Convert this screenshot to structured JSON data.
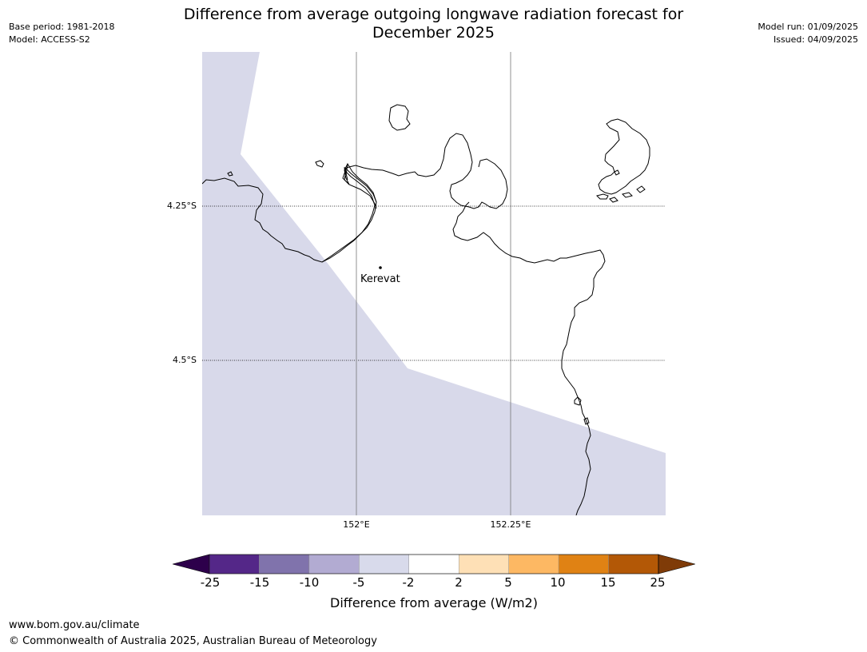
{
  "header": {
    "title_line1": "Difference from average outgoing longwave radiation forecast for",
    "title_line2": "December 2025",
    "base_period": "Base period: 1981-2018",
    "model": "Model: ACCESS-S2",
    "model_run": "Model run: 01/09/2025",
    "issued": "Issued: 04/09/2025"
  },
  "map": {
    "place_label": "Kerevat",
    "lat_labels": [
      "4.25°S",
      "4.5°S"
    ],
    "lon_labels": [
      "152°E",
      "152.25°E"
    ],
    "fill_color": "#d8d9ea",
    "fill_bin": "-5 to -2",
    "coast_color": "#000000"
  },
  "colorbar": {
    "label": "Difference from average (W/m2)",
    "ticks": [
      "-25",
      "-15",
      "-10",
      "-5",
      "-2",
      "2",
      "5",
      "10",
      "15",
      "25"
    ],
    "colors": [
      "#2d004b",
      "#542788",
      "#8073ac",
      "#b2abd2",
      "#d8daeb",
      "#ffffff",
      "#fee0b6",
      "#fdb863",
      "#e08214",
      "#b35806",
      "#7f3b08"
    ]
  },
  "footer": {
    "url": "www.bom.gov.au/climate",
    "copyright": "© Commonwealth of Australia 2025, Australian Bureau of Meteorology"
  }
}
